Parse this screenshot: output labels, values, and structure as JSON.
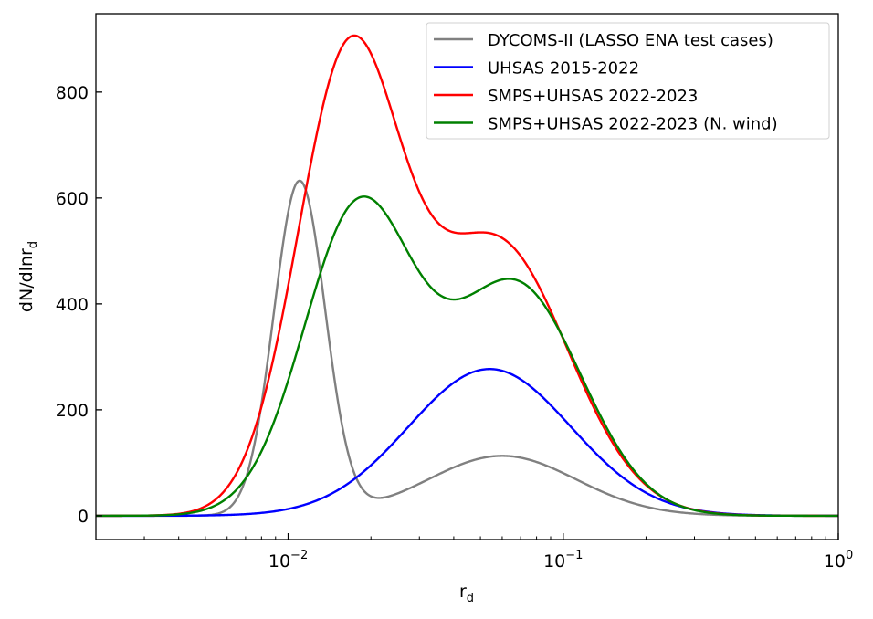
{
  "chart_data": {
    "type": "line",
    "title": "",
    "xlabel": "r",
    "xlabel_sub": "d",
    "ylabel": "dN/dlnr",
    "ylabel_sub": "d",
    "xscale": "log",
    "xlim": [
      0.002,
      1
    ],
    "ylim": [
      -45,
      948
    ],
    "x_ticks": [
      {
        "value": 0.01,
        "base": "10",
        "exp": "−2"
      },
      {
        "value": 0.1,
        "base": "10",
        "exp": "−1"
      },
      {
        "value": 1,
        "base": "10",
        "exp": "0"
      }
    ],
    "y_ticks": [
      0,
      200,
      400,
      600,
      800
    ],
    "y_tick_labels": [
      "0",
      "200",
      "400",
      "600",
      "800"
    ],
    "tick_direction": "in",
    "grid": false,
    "legend_placement": "top-right",
    "curve_form": "sum of lognormal modes: amplitude, median radius, ln(geometric std)",
    "series": [
      {
        "name": "DYCOMS-II (LASSO ENA test cases)",
        "color": "#808080",
        "modes": [
          {
            "amplitude": 630,
            "median": 0.011,
            "ln_sigma": 0.215
          },
          {
            "amplitude": 113,
            "median": 0.06,
            "ln_sigma": 0.62
          }
        ]
      },
      {
        "name": "UHSAS 2015-2022",
        "color": "#0000ff",
        "modes": [
          {
            "amplitude": 277,
            "median": 0.054,
            "ln_sigma": 0.68
          }
        ]
      },
      {
        "name": "SMPS+UHSAS 2022-2023",
        "color": "#ff0000",
        "modes": [
          {
            "amplitude": 840,
            "median": 0.0165,
            "ln_sigma": 0.43
          },
          {
            "amplitude": 517,
            "median": 0.057,
            "ln_sigma": 0.6
          }
        ]
      },
      {
        "name": "SMPS+UHSAS 2022-2023 (N. wind)",
        "color": "#008000",
        "modes": [
          {
            "amplitude": 575,
            "median": 0.018,
            "ln_sigma": 0.46
          },
          {
            "amplitude": 436,
            "median": 0.067,
            "ln_sigma": 0.55
          }
        ]
      }
    ]
  }
}
